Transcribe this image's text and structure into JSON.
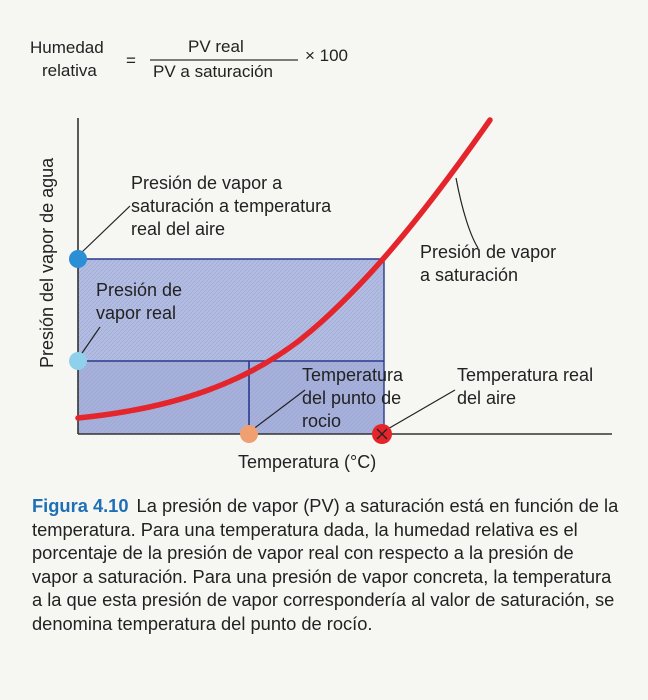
{
  "formula": {
    "lhs_line1": "Humedad",
    "lhs_line2": "relativa",
    "equals": "=",
    "numerator": "PV real",
    "denominator": "PV a saturación",
    "multiplier": "× 100"
  },
  "diagram": {
    "y_axis_label": "Presión del vapor de agua",
    "x_axis_label": "Temperatura (°C)",
    "label_sat_at_real": [
      "Presión de vapor a",
      "saturación a temperatura",
      "real del aire"
    ],
    "label_real_vp": [
      "Presión de",
      "vapor real"
    ],
    "label_sat_curve": [
      "Presión de vapor",
      "a saturación"
    ],
    "label_dew_point": [
      "Temperatura",
      "del punto de",
      "rocio"
    ],
    "label_real_temp": [
      "Temperatura real",
      "del aire"
    ],
    "colors": {
      "curve": "#e4252b",
      "fill": "#aab4dc",
      "rule": "#2a3a8c",
      "sat_dot": "#2b8fd6",
      "real_vp_dot": "#8fd0ec",
      "dew_dot": "#f0a070",
      "real_temp_dot": "#e4252b",
      "caption_accent": "#1e6fb6"
    }
  },
  "caption": {
    "figure": "Figura 4.10",
    "text": "La presión de vapor (PV) a saturación está en función de la temperatura. Para una temperatura dada, la humedad relativa es el porcentaje de la presión de vapor real con respecto a la presión de vapor a saturación. Para una presión de vapor concreta, la temperatura a la que esta presión de vapor correspondería al valor de saturación, se denomina temperatura del punto de rocío."
  }
}
